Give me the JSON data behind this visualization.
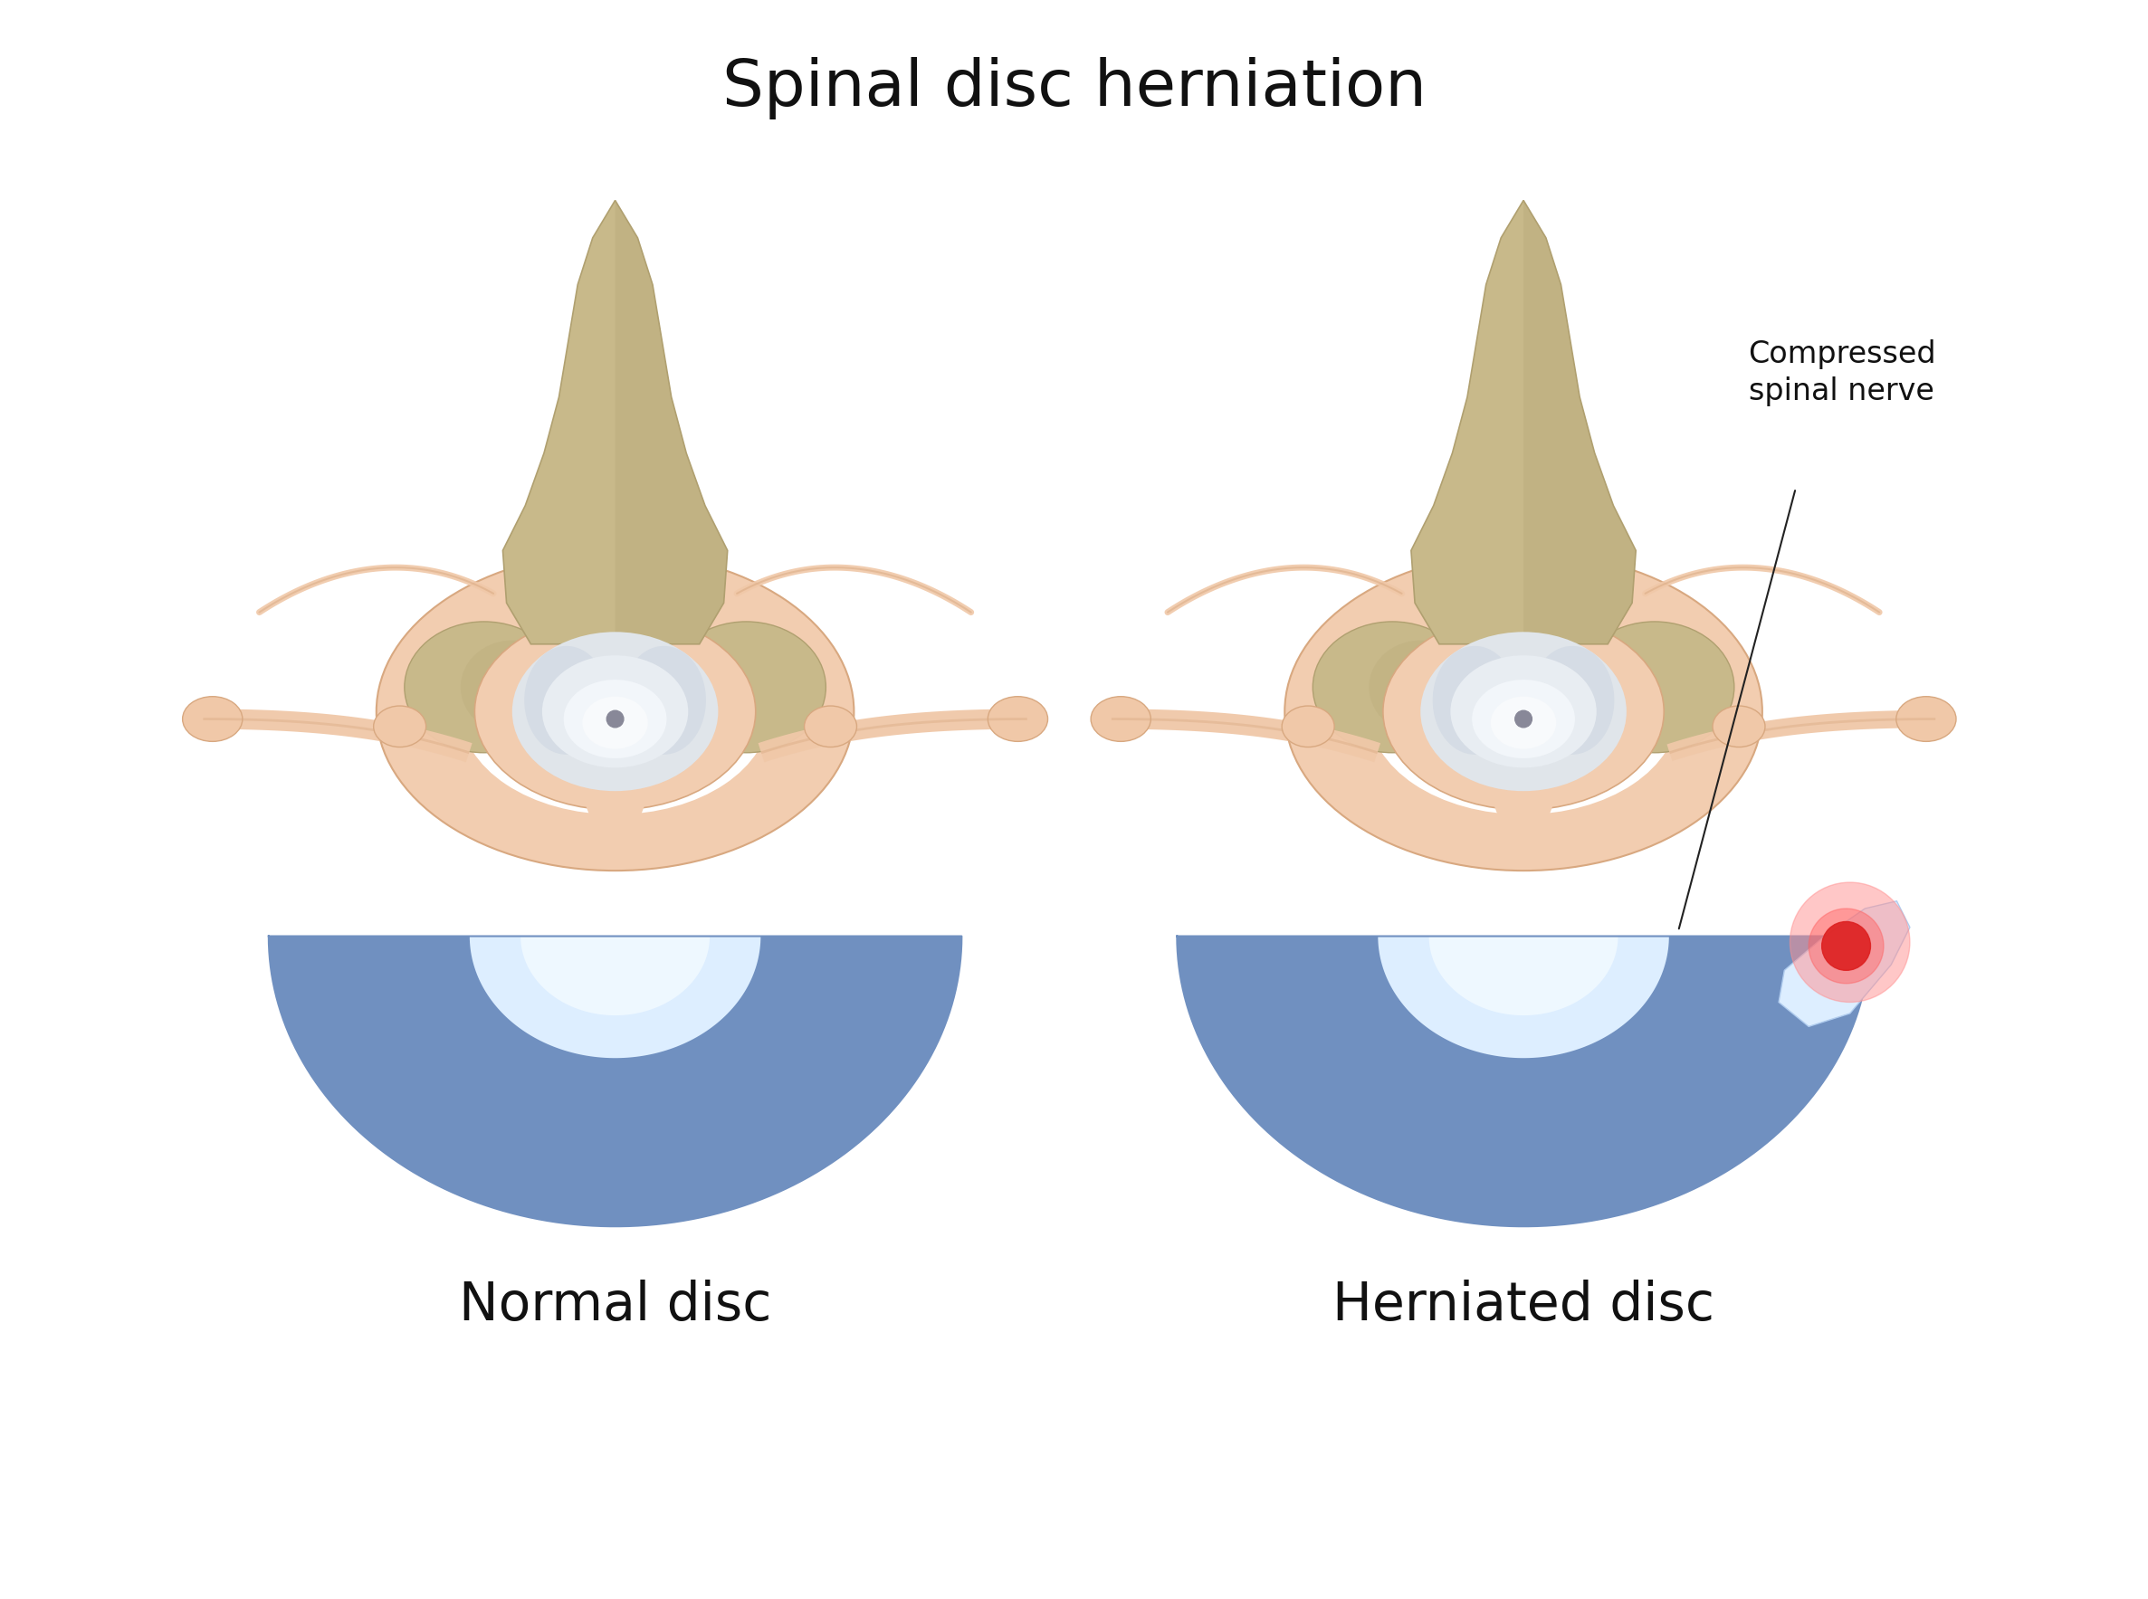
{
  "title": "Spinal disc herniation",
  "label_normal": "Normal disc",
  "label_herniated": "Herniated disc",
  "annotation_text": "Compressed\nspinal nerve",
  "bg_color": "#ffffff",
  "title_fontsize": 52,
  "label_fontsize": 42,
  "annotation_fontsize": 24,
  "bone_color": "#c8b98a",
  "bone_dark": "#b0a070",
  "bone_shadow": "#a09060",
  "nerve_color": "#f0c8a8",
  "nerve_edge": "#d8a880",
  "canal_color": "#f2cdb0",
  "cord_white": "#e8ecf0",
  "cord_gray": "#d0d8e0",
  "cord_inner_white": "#f0f4f8",
  "disc_blue_dark": "#7090c0",
  "disc_blue_mid": "#90b0d5",
  "disc_blue_light": "#b8d4ec",
  "disc_nucleus": "#ddeeff",
  "disc_nucleus_light": "#eef6ff",
  "hern_blob": "#ddeeff",
  "red_spot": "#dd2020",
  "pink_glow": "#ff9090",
  "annotation_line": "#222222"
}
